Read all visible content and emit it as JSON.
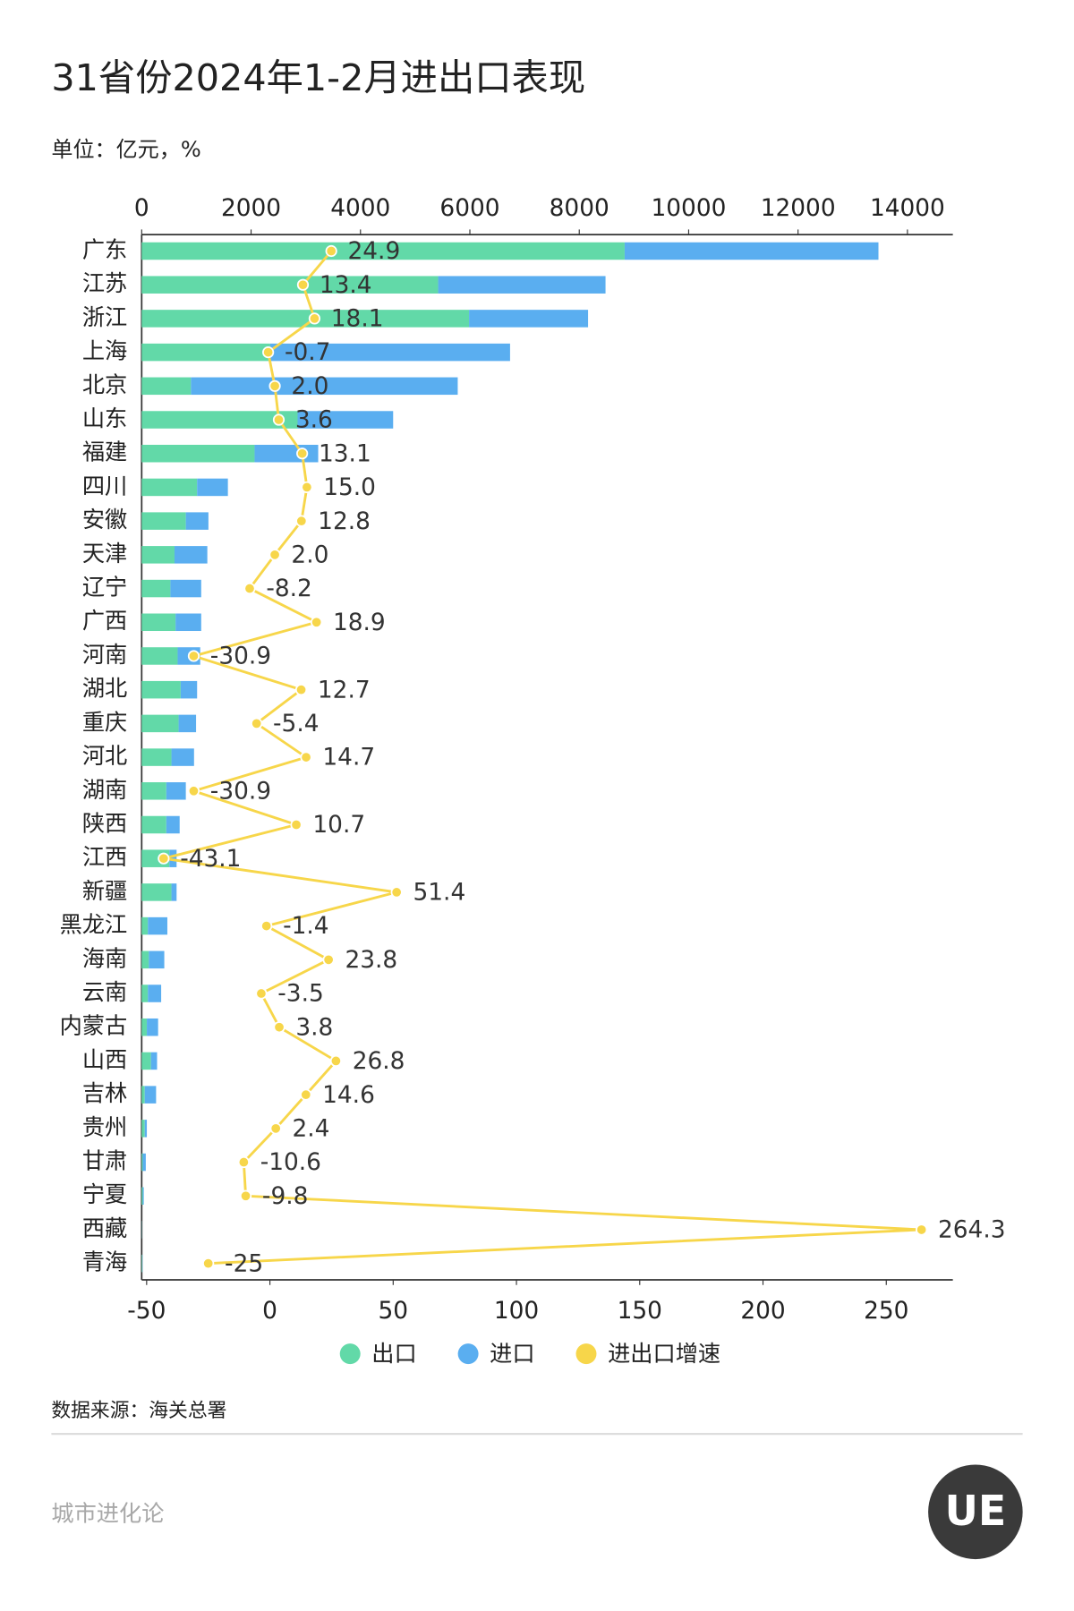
{
  "chart_data": {
    "type": "bar",
    "orientation": "horizontal",
    "stacked": true,
    "title": "31省份2024年1-2月进出口表现",
    "subtitle": "单位：亿元，%",
    "source": "数据来源：海关总署",
    "footer": "城市进化论",
    "logo": "UE",
    "categories": [
      "广东",
      "江苏",
      "浙江",
      "上海",
      "北京",
      "山东",
      "福建",
      "四川",
      "安徽",
      "天津",
      "辽宁",
      "广西",
      "河南",
      "湖北",
      "重庆",
      "河北",
      "湖南",
      "陕西",
      "江西",
      "新疆",
      "黑龙江",
      "海南",
      "云南",
      "内蒙古",
      "山西",
      "吉林",
      "贵州",
      "甘肃",
      "宁夏",
      "西藏",
      "青海"
    ],
    "series": [
      {
        "name": "出口",
        "color": "#62d9a8",
        "values": [
          8830,
          5420,
          5985,
          2350,
          900,
          2850,
          2064,
          1013,
          807,
          600,
          525,
          619,
          657,
          713,
          675,
          544,
          450,
          450,
          507,
          544,
          113,
          131,
          113,
          94,
          169,
          56,
          56,
          19,
          19,
          3,
          10
        ]
      },
      {
        "name": "进口",
        "color": "#5aaef0",
        "values": [
          4640,
          3060,
          2176,
          4385,
          4878,
          1747,
          1163,
          563,
          413,
          600,
          563,
          469,
          413,
          300,
          319,
          413,
          357,
          244,
          131,
          94,
          356,
          282,
          243,
          206,
          112,
          207,
          38,
          56,
          19,
          2,
          5
        ]
      },
      {
        "name": "进出口增速",
        "color": "#f7d64a",
        "type": "line",
        "axis": "x2",
        "values": [
          24.9,
          13.4,
          18.1,
          -0.7,
          2.0,
          3.6,
          13.1,
          15.0,
          12.8,
          2.0,
          -8.2,
          18.9,
          -30.9,
          12.7,
          -5.4,
          14.7,
          -30.9,
          10.7,
          -43.1,
          51.4,
          -1.4,
          23.8,
          -3.5,
          3.8,
          26.8,
          14.6,
          2.4,
          -10.6,
          -9.8,
          264.3,
          -25
        ],
        "value_labels": [
          "24.9",
          "13.4",
          "18.1",
          "-0.7",
          "2.0",
          "3.6",
          "13.1",
          "15.0",
          "12.8",
          "2.0",
          "-8.2",
          "18.9",
          "-30.9",
          "12.7",
          "-5.4",
          "14.7",
          "-30.9",
          "10.7",
          "-43.1",
          "51.4",
          "-1.4",
          "23.8",
          "-3.5",
          "3.8",
          "26.8",
          "14.6",
          "2.4",
          "-10.6",
          "-9.8",
          "264.3",
          "-25"
        ]
      }
    ],
    "xlim": [
      0,
      14830
    ],
    "xticks": [
      0,
      2000,
      4000,
      6000,
      8000,
      10000,
      12000,
      14000
    ],
    "x2lim": [
      -52,
      277
    ],
    "x2ticks": [
      -50,
      0,
      50,
      100,
      150,
      200,
      250
    ],
    "legend": "bottom"
  }
}
